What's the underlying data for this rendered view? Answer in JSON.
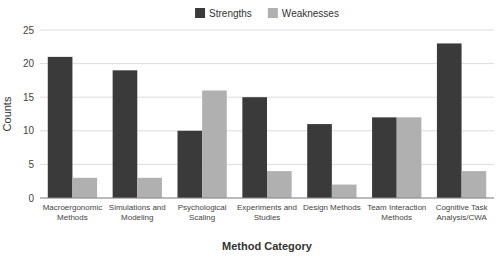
{
  "chart_data": {
    "type": "bar",
    "xlabel": "Method Category",
    "ylabel": "Counts",
    "categories": [
      "Macroergonomic\nMethods",
      "Simulations and\nModeling",
      "Psychological\nScaling",
      "Experiments and\nStudies",
      "Design Methods",
      "Team Interaction\nMethods",
      "Cognitive Task\nAnalysis/CWA"
    ],
    "series": [
      {
        "name": "Strengths",
        "color": "#3a3a3a",
        "values": [
          21,
          19,
          10,
          15,
          11,
          12,
          23
        ]
      },
      {
        "name": "Weaknesses",
        "color": "#b0b0b0",
        "values": [
          3,
          3,
          16,
          4,
          2,
          12,
          4
        ]
      }
    ],
    "ylim": [
      0,
      25
    ],
    "yticks": [
      0,
      5,
      10,
      15,
      20,
      25
    ],
    "grid": true,
    "legend": "top"
  }
}
